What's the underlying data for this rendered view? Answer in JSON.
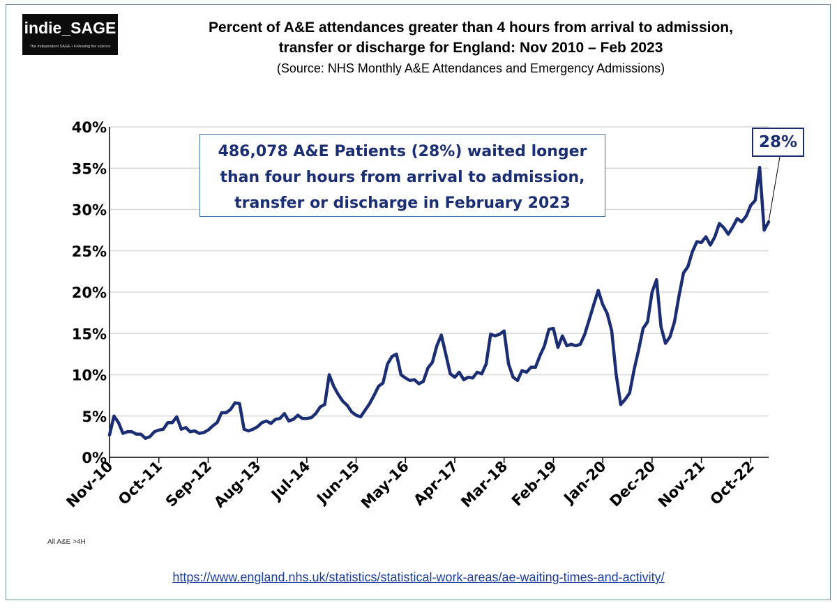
{
  "logo": {
    "title": "indie_SAGE",
    "subtitle": "The Independent SAGE • Following the science"
  },
  "header": {
    "title_line1": "Percent of A&E attendances greater than 4 hours from arrival to admission,",
    "title_line2": "transfer or discharge for England: Nov 2010 – Feb 2023",
    "subtitle": "(Source: NHS Monthly A&E Attendances and Emergency Admissions)"
  },
  "annotation": {
    "line1": "486,078 A&E Patients (28%) waited longer",
    "line2": "than four hours from arrival to admission,",
    "line3": "transfer or discharge in February 2023"
  },
  "callout": {
    "label": "28%"
  },
  "footer": {
    "note": "All A&E >4H",
    "link": "https://www.england.nhs.uk/statistics/statistical-work-areas/ae-waiting-times-and-activity/"
  },
  "chart_data": {
    "type": "line",
    "title": "Percent of A&E attendances greater than 4 hours from arrival to admission, transfer or discharge for England: Nov 2010 – Feb 2023",
    "xlabel": "",
    "ylabel": "",
    "ylim": [
      0,
      40
    ],
    "yticks": [
      0,
      5,
      10,
      15,
      20,
      25,
      30,
      35,
      40
    ],
    "ytick_labels": [
      "0%",
      "5%",
      "10%",
      "15%",
      "20%",
      "25%",
      "30%",
      "35%",
      "40%"
    ],
    "xtick_labels": [
      "Nov-10",
      "Oct-11",
      "Sep-12",
      "Aug-13",
      "Jul-14",
      "Jun-15",
      "May-16",
      "Apr-17",
      "Mar-18",
      "Feb-19",
      "Jan-20",
      "Dec-20",
      "Nov-21",
      "Oct-22"
    ],
    "xtick_indices": [
      0,
      11,
      22,
      33,
      44,
      55,
      66,
      77,
      88,
      99,
      110,
      121,
      132,
      143
    ],
    "series": [
      {
        "name": "All A&E >4H",
        "color": "#1b2e73",
        "start": "Nov-10",
        "values": [
          2.7,
          5.0,
          4.2,
          2.9,
          3.1,
          3.1,
          2.8,
          2.8,
          2.3,
          2.5,
          3.1,
          3.3,
          3.4,
          4.2,
          4.2,
          4.9,
          3.4,
          3.6,
          3.1,
          3.2,
          2.9,
          3.0,
          3.3,
          3.8,
          4.2,
          5.4,
          5.4,
          5.8,
          6.6,
          6.5,
          3.4,
          3.2,
          3.4,
          3.7,
          4.2,
          4.4,
          4.1,
          4.6,
          4.7,
          5.3,
          4.4,
          4.6,
          5.1,
          4.7,
          4.7,
          4.8,
          5.3,
          6.1,
          6.4,
          10.0,
          8.6,
          7.6,
          6.8,
          6.3,
          5.5,
          5.1,
          4.9,
          5.7,
          6.5,
          7.5,
          8.6,
          9.0,
          11.3,
          12.2,
          12.5,
          10.0,
          9.6,
          9.3,
          9.4,
          8.9,
          9.2,
          10.8,
          11.5,
          13.5,
          14.8,
          12.5,
          10.1,
          9.7,
          10.3,
          9.4,
          9.7,
          9.6,
          10.3,
          10.1,
          11.3,
          14.9,
          14.7,
          14.9,
          15.3,
          11.3,
          9.7,
          9.3,
          10.5,
          10.3,
          10.9,
          10.9,
          12.3,
          13.5,
          15.5,
          15.6,
          13.3,
          14.7,
          13.5,
          13.7,
          13.5,
          13.7,
          14.9,
          16.7,
          18.5,
          20.2,
          18.5,
          17.4,
          15.3,
          10.0,
          6.4,
          7.0,
          7.8,
          10.6,
          13.0,
          15.6,
          16.4,
          20.0,
          21.5,
          15.8,
          13.8,
          14.6,
          16.4,
          19.5,
          22.3,
          23.1,
          24.9,
          26.1,
          26.0,
          26.7,
          25.7,
          26.7,
          28.3,
          27.8,
          27.0,
          27.9,
          28.9,
          28.5,
          29.2,
          30.5,
          31.1,
          35.1,
          27.5,
          28.5
        ]
      }
    ],
    "legend": "none",
    "grid": "horizontal"
  }
}
